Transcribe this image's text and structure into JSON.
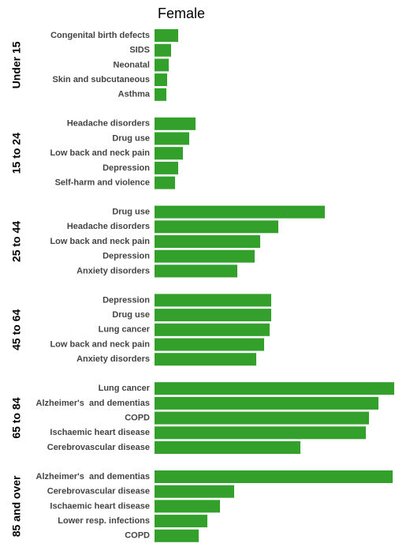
{
  "chart_data": {
    "type": "bar",
    "title": "Female",
    "color": "#33a02c",
    "xlim": [
      0,
      305
    ],
    "groups": [
      {
        "name": "Under 15",
        "categories": [
          "Congenital birth defects",
          "SIDS",
          "Neonatal",
          "Skin and subcutaneous",
          "Asthma"
        ],
        "values": [
          30,
          21,
          18,
          16,
          15
        ]
      },
      {
        "name": "15 to 24",
        "categories": [
          "Headache disorders",
          "Drug use",
          "Low back and neck pain",
          "Depression",
          "Self-harm and violence"
        ],
        "values": [
          52,
          44,
          36,
          30,
          26
        ]
      },
      {
        "name": "25 to 44",
        "categories": [
          "Drug use",
          "Headache disorders",
          "Low back and neck pain",
          "Depression",
          "Anxiety disorders"
        ],
        "values": [
          216,
          157,
          134,
          127,
          105
        ]
      },
      {
        "name": "45 to 64",
        "categories": [
          "Depression",
          "Drug use",
          "Lung cancer",
          "Low back and neck pain",
          "Anxiety disorders"
        ],
        "values": [
          148,
          148,
          146,
          139,
          129
        ]
      },
      {
        "name": "65 to 84",
        "categories": [
          "Lung cancer",
          "Alzheimer's  and dementias",
          "COPD",
          "Ischaemic heart disease",
          "Cerebrovascular disease"
        ],
        "values": [
          304,
          284,
          272,
          268,
          185
        ]
      },
      {
        "name": "85 and over",
        "categories": [
          "Alzheimer's  and dementias",
          "Cerebrovascular disease",
          "Ischaemic heart disease",
          "Lower resp. infections",
          "COPD"
        ],
        "values": [
          302,
          101,
          83,
          67,
          56
        ]
      }
    ]
  }
}
